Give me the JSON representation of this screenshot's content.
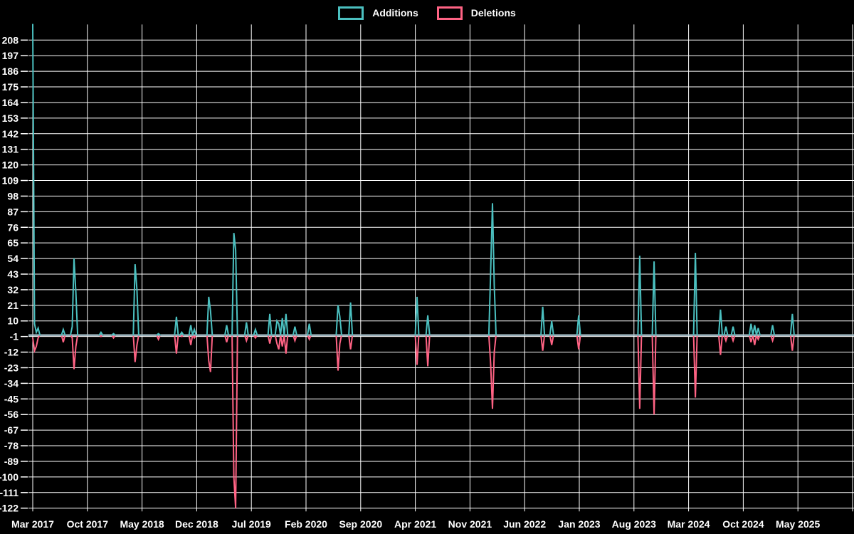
{
  "chart_data": {
    "type": "line",
    "title": "",
    "legend_position": "top",
    "grid": true,
    "background_color": "#000000",
    "gridline_color": "#ffffff",
    "baseline_color": "#a9c3cd",
    "series": [
      {
        "name": "Additions",
        "color": "#4bc0c0"
      },
      {
        "name": "Deletions",
        "color": "#ff6384"
      }
    ],
    "x_axis": {
      "labels": [
        "Mar 2017",
        "Oct 2017",
        "May 2018",
        "Dec 2018",
        "Jul 2019",
        "Feb 2020",
        "Sep 2020",
        "Apr 2021",
        "Nov 2021",
        "Jun 2022",
        "Jan 2023",
        "Aug 2023",
        "Mar 2024",
        "Oct 2024",
        "May 2025"
      ],
      "months_per_gridline": 7,
      "gridline_count": 16
    },
    "y_axis": {
      "ticks": [
        208,
        197,
        186,
        175,
        164,
        153,
        142,
        131,
        120,
        109,
        98,
        87,
        76,
        65,
        54,
        43,
        32,
        21,
        10,
        -1,
        -12,
        -23,
        -34,
        -45,
        -56,
        -67,
        -78,
        -89,
        -100,
        -111,
        -122
      ],
      "min": -122,
      "max": 219
    },
    "weeks_shown": 456,
    "weekly_points_format": [
      "week_index",
      "additions",
      "deletions"
    ],
    "weekly_points": [
      [
        0,
        219,
        -2
      ],
      [
        1,
        8,
        -11
      ],
      [
        2,
        2,
        -8
      ],
      [
        3,
        5,
        -2
      ],
      [
        17,
        4,
        -5
      ],
      [
        22,
        6,
        -2
      ],
      [
        23,
        54,
        -24
      ],
      [
        24,
        30,
        -8
      ],
      [
        38,
        2,
        -1
      ],
      [
        45,
        1,
        -2
      ],
      [
        57,
        50,
        -19
      ],
      [
        58,
        32,
        -7
      ],
      [
        70,
        1,
        -3
      ],
      [
        80,
        13,
        -13
      ],
      [
        83,
        2,
        -1
      ],
      [
        88,
        7,
        -7
      ],
      [
        90,
        4,
        -2
      ],
      [
        98,
        27,
        -18
      ],
      [
        99,
        17,
        -26
      ],
      [
        108,
        7,
        -5
      ],
      [
        112,
        72,
        -100
      ],
      [
        113,
        60,
        -122
      ],
      [
        119,
        9,
        -4
      ],
      [
        124,
        4,
        -2
      ],
      [
        132,
        15,
        -6
      ],
      [
        136,
        10,
        -6
      ],
      [
        137,
        8,
        -10
      ],
      [
        139,
        12,
        -8
      ],
      [
        141,
        15,
        -13
      ],
      [
        146,
        6,
        -4
      ],
      [
        154,
        8,
        -3
      ],
      [
        170,
        21,
        -25
      ],
      [
        171,
        13,
        -6
      ],
      [
        177,
        23,
        -10
      ],
      [
        214,
        27,
        -21
      ],
      [
        220,
        14,
        -22
      ],
      [
        255,
        44,
        -20
      ],
      [
        256,
        93,
        -52
      ],
      [
        257,
        35,
        -12
      ],
      [
        284,
        20,
        -11
      ],
      [
        289,
        10,
        -7
      ],
      [
        304,
        14,
        -10
      ],
      [
        338,
        56,
        -52
      ],
      [
        346,
        52,
        -56
      ],
      [
        369,
        58,
        -44
      ],
      [
        383,
        18,
        -14
      ],
      [
        386,
        6,
        -4
      ],
      [
        390,
        6,
        -4
      ],
      [
        400,
        8,
        -5
      ],
      [
        402,
        7,
        -7
      ],
      [
        404,
        5,
        -3
      ],
      [
        412,
        7,
        -4
      ],
      [
        423,
        15,
        -11
      ]
    ]
  }
}
